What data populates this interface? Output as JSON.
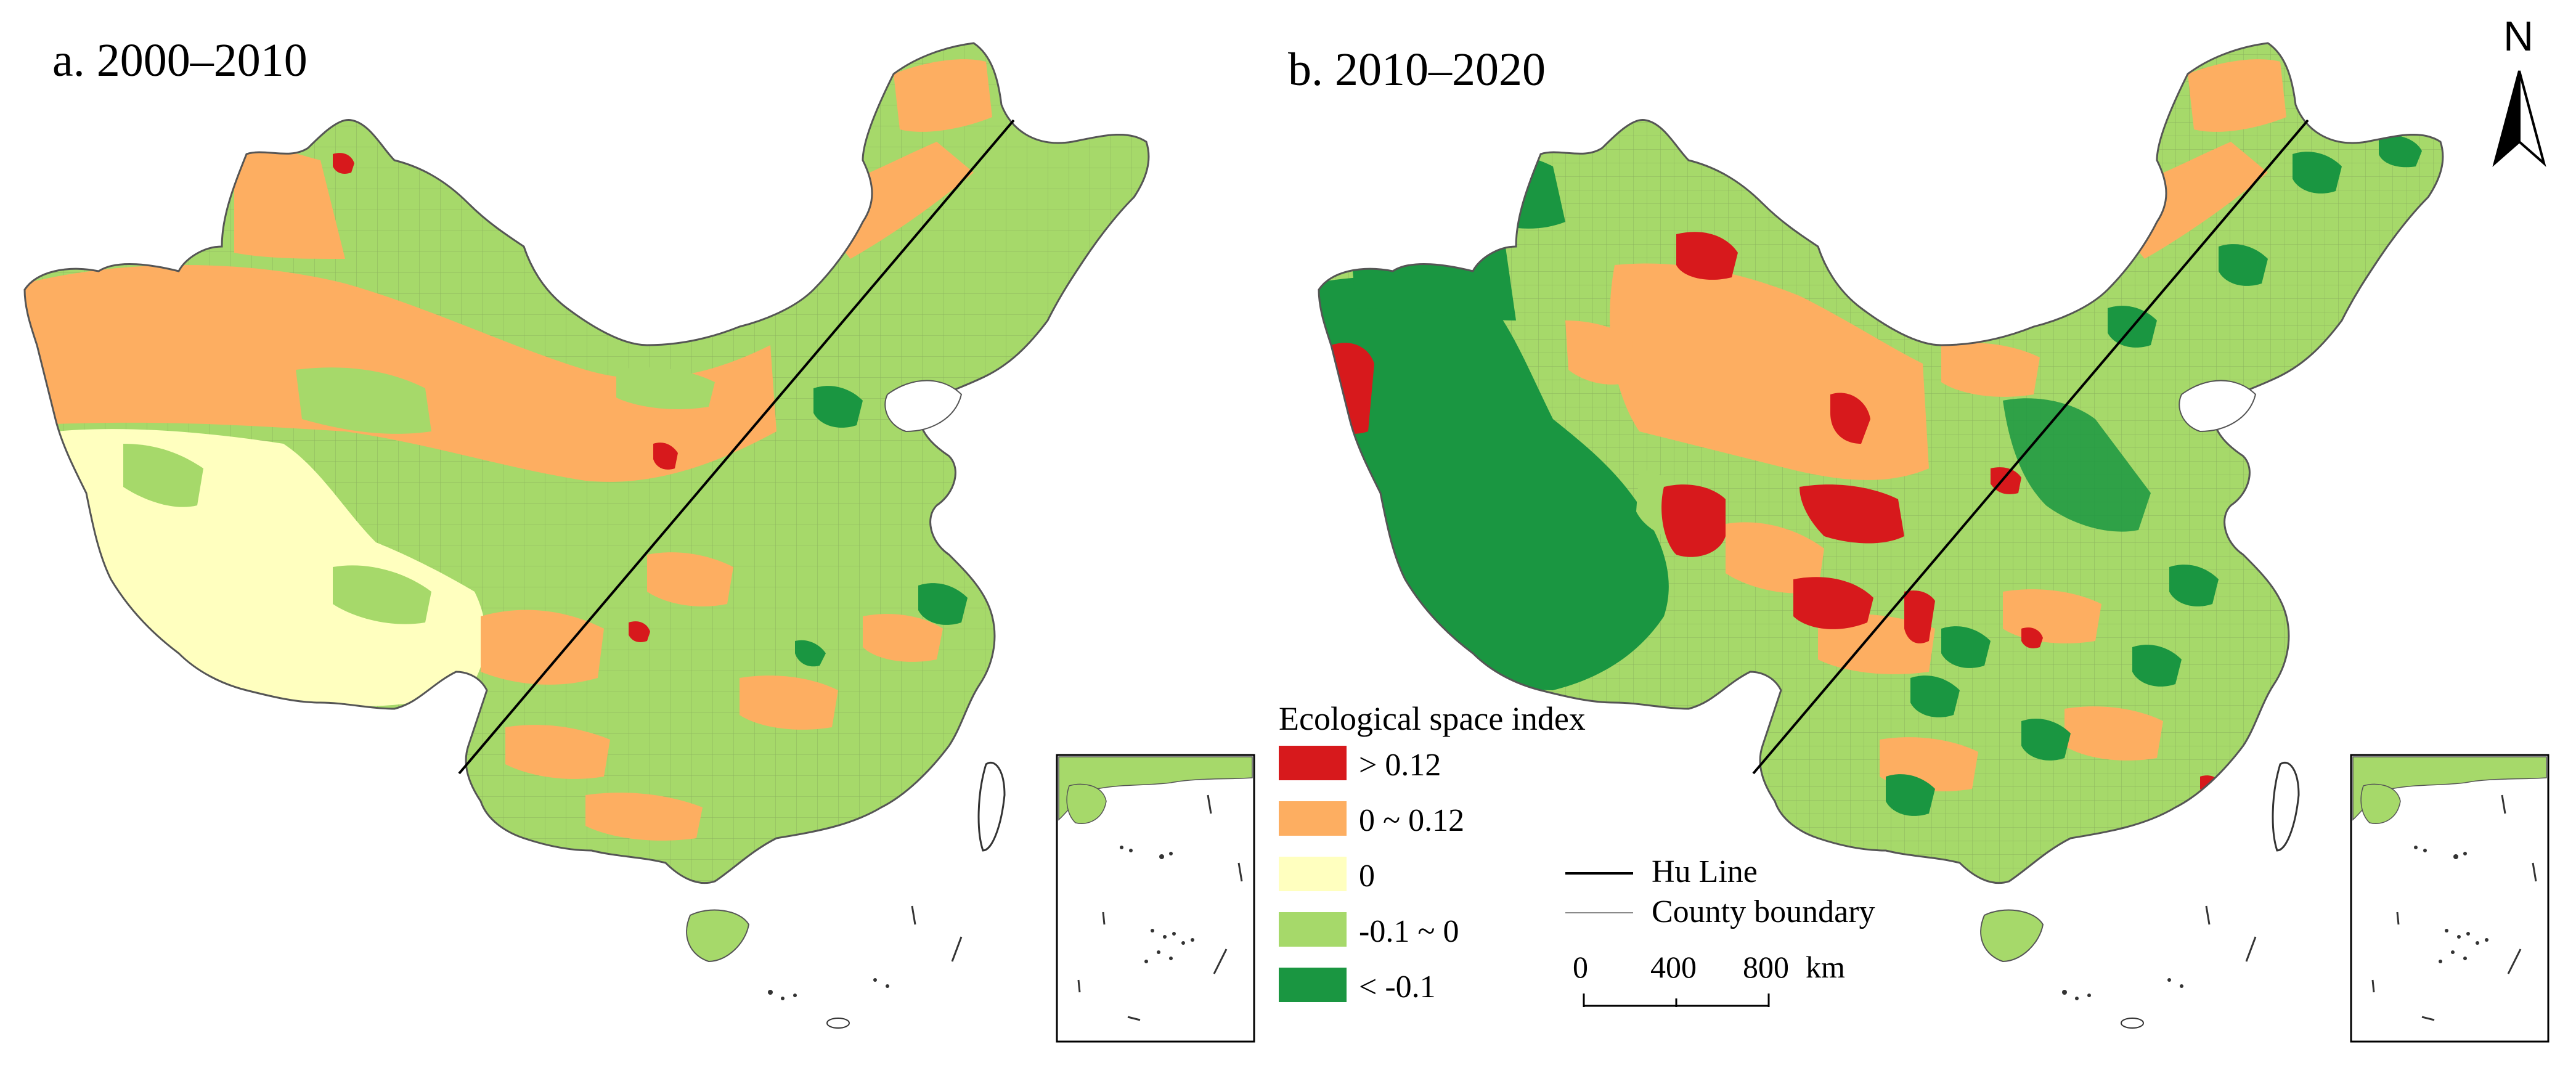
{
  "panels": [
    {
      "label": "a. 2000–2010",
      "period": "2000–2010"
    },
    {
      "label": "b. 2010–2020",
      "period": "2010–2020"
    }
  ],
  "legend": {
    "title": "Ecological space index",
    "classes": [
      {
        "label": "> 0.12",
        "color": "#d7191c",
        "key": "high"
      },
      {
        "label": "0 ~ 0.12",
        "color": "#fdae61",
        "key": "mid"
      },
      {
        "label": "0",
        "color": "#ffffbf",
        "key": "zero"
      },
      {
        "label": "-0.1 ~ 0",
        "color": "#a6d96a",
        "key": "low"
      },
      {
        "label": "< -0.1",
        "color": "#1a9641",
        "key": "lowest"
      }
    ]
  },
  "line_legend": {
    "hu_line": "Hu Line",
    "county_boundary": "County boundary"
  },
  "scale": {
    "ticks": [
      "0",
      "400",
      "800"
    ],
    "unit": "km"
  },
  "north_arrow": {
    "label": "N"
  },
  "colors": {
    "hu_line": "#000000",
    "county_boundary": "#7a7a7a",
    "map_outline": "#555555"
  }
}
